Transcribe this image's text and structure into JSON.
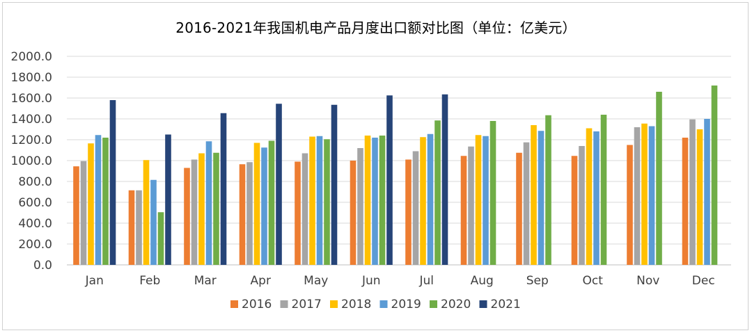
{
  "chart_data": {
    "type": "bar",
    "title": "2016-2021年我国机电产品月度出口额对比图（单位：亿美元）",
    "categories": [
      "Jan",
      "Feb",
      "Mar",
      "Apr",
      "May",
      "Jun",
      "Jul",
      "Aug",
      "Sep",
      "Oct",
      "Nov",
      "Dec"
    ],
    "ylim": [
      0,
      2000
    ],
    "ytick_step": 200,
    "ytick_labels": [
      "0.0",
      "200.0",
      "400.0",
      "600.0",
      "800.0",
      "1000.0",
      "1200.0",
      "1400.0",
      "1600.0",
      "1800.0",
      "2000.0"
    ],
    "grid": true,
    "legend_position": "bottom",
    "series": [
      {
        "name": "2016",
        "color": "#ED7D31",
        "values": [
          945,
          715,
          930,
          965,
          990,
          1000,
          1010,
          1045,
          1075,
          1045,
          1150,
          1220
        ]
      },
      {
        "name": "2017",
        "color": "#A5A5A5",
        "values": [
          995,
          715,
          1010,
          985,
          1070,
          1120,
          1090,
          1135,
          1175,
          1140,
          1320,
          1395
        ]
      },
      {
        "name": "2018",
        "color": "#FFC000",
        "values": [
          1165,
          1005,
          1070,
          1170,
          1230,
          1240,
          1225,
          1245,
          1340,
          1310,
          1355,
          1300
        ]
      },
      {
        "name": "2019",
        "color": "#5B9BD5",
        "values": [
          1245,
          815,
          1185,
          1125,
          1235,
          1220,
          1255,
          1235,
          1285,
          1280,
          1330,
          1400
        ]
      },
      {
        "name": "2020",
        "color": "#70AD47",
        "values": [
          1220,
          505,
          1075,
          1190,
          1205,
          1240,
          1385,
          1380,
          1435,
          1440,
          1660,
          1720
        ]
      },
      {
        "name": "2021",
        "color": "#264478",
        "values": [
          1580,
          1250,
          1455,
          1545,
          1535,
          1625,
          1635,
          null,
          null,
          null,
          null,
          null
        ]
      }
    ]
  }
}
